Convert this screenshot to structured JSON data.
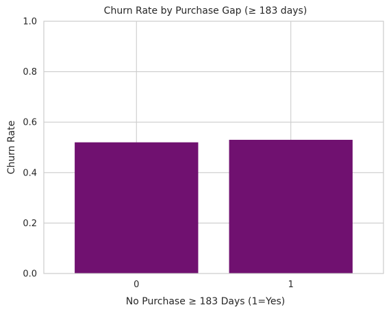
{
  "chart_data": {
    "type": "bar",
    "title": "Churn Rate by Purchase Gap (≥ 183 days)",
    "xlabel": "No Purchase ≥ 183 Days (1=Yes)",
    "ylabel": "Churn Rate",
    "categories": [
      "0",
      "1"
    ],
    "values": [
      0.52,
      0.53
    ],
    "ylim": [
      0,
      1
    ],
    "yticks": [
      "0.0",
      "0.2",
      "0.4",
      "0.6",
      "0.8",
      "1.0"
    ],
    "grid": true,
    "bar_color": "#701170",
    "grid_color": "#cccccc",
    "spine_color": "#cccccc"
  }
}
